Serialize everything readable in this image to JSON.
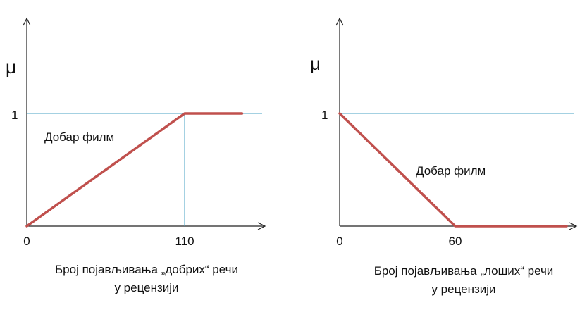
{
  "chart_data": [
    {
      "type": "line",
      "ylabel": "μ",
      "xlabel": [
        "Број појављивања „добрих“ речи",
        "у рецензији"
      ],
      "y_ticks": [
        "1"
      ],
      "x_ticks": [
        "0",
        "110"
      ],
      "annotation": "Добар филм",
      "series": [
        {
          "x": [
            0,
            110,
            150
          ],
          "y": [
            0,
            1,
            1
          ]
        }
      ],
      "guides": {
        "y": 1,
        "x": 110
      },
      "color": "#c0504d",
      "guide_color": "#4aa3c6"
    },
    {
      "type": "line",
      "ylabel": "μ",
      "xlabel": [
        "Број појављивања „лоших“ речи",
        "у рецензији"
      ],
      "y_ticks": [
        "1"
      ],
      "x_ticks": [
        "0",
        "60"
      ],
      "annotation": "Добар филм",
      "series": [
        {
          "x": [
            0,
            60,
            120
          ],
          "y": [
            1,
            0,
            0
          ]
        }
      ],
      "guides": {
        "y": 1
      },
      "color": "#c0504d",
      "guide_color": "#4aa3c6"
    }
  ]
}
